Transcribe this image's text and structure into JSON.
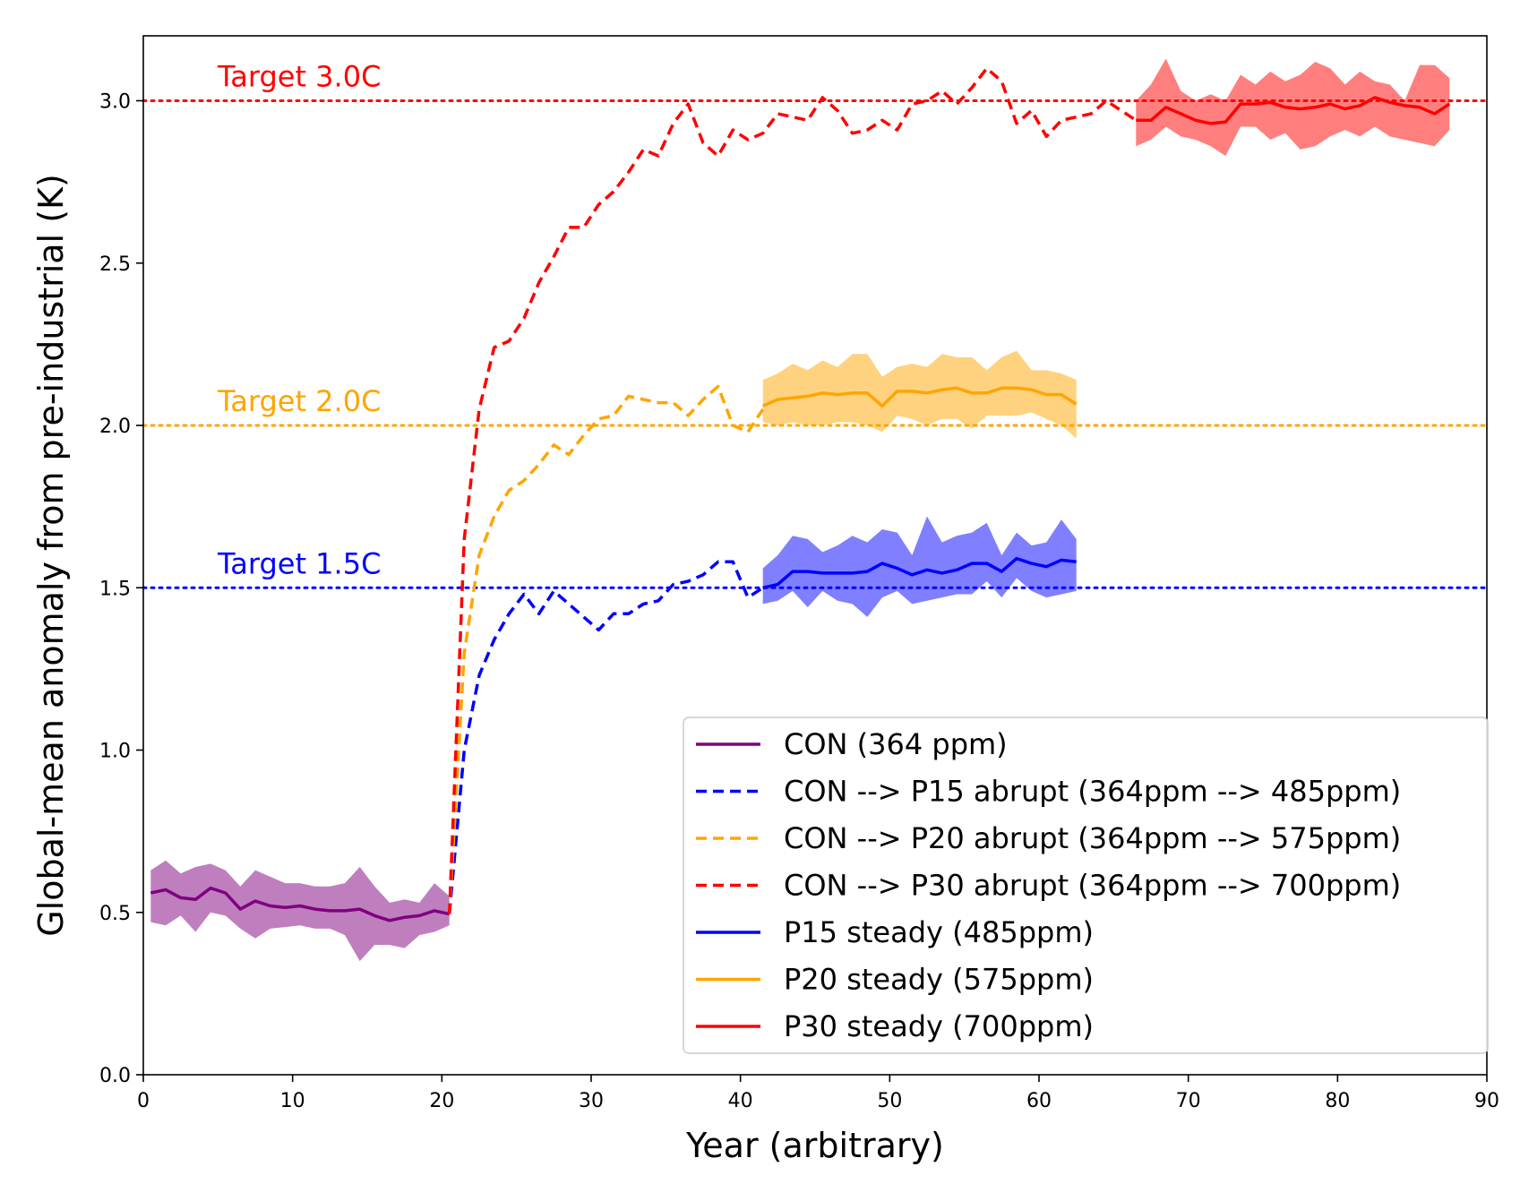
{
  "chart_data": {
    "type": "line",
    "xlabel": "Year (arbitrary)",
    "ylabel": "Global-mean anomaly from pre-industrial (K)",
    "xlim": [
      0,
      90
    ],
    "ylim": [
      0,
      3.2
    ],
    "xticks": [
      0,
      10,
      20,
      30,
      40,
      50,
      60,
      70,
      80,
      90
    ],
    "yticks": [
      0.0,
      0.5,
      1.0,
      1.5,
      2.0,
      2.5,
      3.0
    ],
    "xtick_labels": [
      "0",
      "10",
      "20",
      "30",
      "40",
      "50",
      "60",
      "70",
      "80",
      "90"
    ],
    "ytick_labels": [
      "0.0",
      "0.5",
      "1.0",
      "1.5",
      "2.0",
      "2.5",
      "3.0"
    ],
    "grid": false,
    "legend_position": "lower-right",
    "targets": [
      {
        "value": 1.5,
        "label": "Target 1.5C",
        "color": "#0000ff"
      },
      {
        "value": 2.0,
        "label": "Target 2.0C",
        "color": "#ffa500"
      },
      {
        "value": 3.0,
        "label": "Target 3.0C",
        "color": "#ff0000"
      }
    ],
    "series": [
      {
        "name": "CON (364 ppm)",
        "color": "#800080",
        "style": "solid",
        "x": [
          0.5,
          1.5,
          2.5,
          3.5,
          4.5,
          5.5,
          6.5,
          7.5,
          8.5,
          9.5,
          10.5,
          11.5,
          12.5,
          13.5,
          14.5,
          15.5,
          16.5,
          17.5,
          18.5,
          19.5,
          20.5
        ],
        "y": [
          0.56,
          0.57,
          0.545,
          0.54,
          0.575,
          0.56,
          0.51,
          0.535,
          0.52,
          0.515,
          0.52,
          0.51,
          0.505,
          0.505,
          0.51,
          0.49,
          0.475,
          0.485,
          0.49,
          0.505,
          0.495
        ],
        "band_upper": [
          0.63,
          0.66,
          0.62,
          0.64,
          0.65,
          0.63,
          0.58,
          0.63,
          0.61,
          0.59,
          0.59,
          0.58,
          0.58,
          0.59,
          0.64,
          0.58,
          0.53,
          0.54,
          0.53,
          0.59,
          0.55
        ],
        "band_lower": [
          0.47,
          0.46,
          0.49,
          0.44,
          0.5,
          0.49,
          0.45,
          0.42,
          0.45,
          0.455,
          0.46,
          0.45,
          0.45,
          0.43,
          0.35,
          0.4,
          0.4,
          0.39,
          0.43,
          0.44,
          0.46
        ]
      },
      {
        "name": "CON --> P15 abrupt (364ppm --> 485ppm)",
        "color": "#0000ff",
        "style": "dashed",
        "x": [
          20.5,
          21.5,
          22.5,
          23.5,
          24.5,
          25.5,
          26.5,
          27.5,
          28.5,
          29.5,
          30.5,
          31.5,
          32.5,
          33.5,
          34.5,
          35.5,
          36.5,
          37.5,
          38.5,
          39.5,
          40.5,
          41.5
        ],
        "y": [
          0.495,
          1.0,
          1.23,
          1.34,
          1.42,
          1.48,
          1.42,
          1.49,
          1.45,
          1.41,
          1.37,
          1.42,
          1.42,
          1.45,
          1.46,
          1.51,
          1.52,
          1.54,
          1.58,
          1.58,
          1.47,
          1.5
        ]
      },
      {
        "name": "CON --> P20 abrupt (364ppm --> 575ppm)",
        "color": "#ffa500",
        "style": "dashed",
        "x": [
          20.5,
          21.5,
          22.5,
          23.5,
          24.5,
          25.5,
          26.5,
          27.5,
          28.5,
          29.5,
          30.5,
          31.5,
          32.5,
          33.5,
          34.5,
          35.5,
          36.5,
          37.5,
          38.5,
          39.5,
          40.5,
          41.5
        ],
        "y": [
          0.495,
          1.3,
          1.6,
          1.72,
          1.8,
          1.83,
          1.88,
          1.94,
          1.91,
          1.97,
          2.02,
          2.03,
          2.09,
          2.08,
          2.07,
          2.07,
          2.03,
          2.08,
          2.12,
          2.0,
          1.98,
          2.05
        ]
      },
      {
        "name": "CON --> P30 abrupt (364ppm --> 700ppm)",
        "color": "#ff0000",
        "style": "dashed",
        "x": [
          20.5,
          21.5,
          22.5,
          23.5,
          24.5,
          25.5,
          26.5,
          27.5,
          28.5,
          29.5,
          30.5,
          31.5,
          32.5,
          33.5,
          34.5,
          35.5,
          36.5,
          37.5,
          38.5,
          39.5,
          40.5,
          41.5,
          42.5,
          43.5,
          44.5,
          45.5,
          46.5,
          47.5,
          48.5,
          49.5,
          50.5,
          51.5,
          52.5,
          53.5,
          54.5,
          55.5,
          56.5,
          57.5,
          58.5,
          59.5,
          60.5,
          61.5,
          62.5,
          63.5,
          64.5,
          65.5,
          66.5
        ],
        "y": [
          0.495,
          1.65,
          2.05,
          2.24,
          2.26,
          2.33,
          2.44,
          2.52,
          2.61,
          2.61,
          2.68,
          2.72,
          2.78,
          2.85,
          2.83,
          2.93,
          2.99,
          2.87,
          2.83,
          2.91,
          2.88,
          2.9,
          2.96,
          2.95,
          2.94,
          3.01,
          2.97,
          2.9,
          2.91,
          2.94,
          2.91,
          2.99,
          3.0,
          3.03,
          2.99,
          3.04,
          3.1,
          3.06,
          2.93,
          2.97,
          2.89,
          2.94,
          2.95,
          2.96,
          3.0,
          2.97,
          2.94
        ]
      },
      {
        "name": "P15 steady (485ppm)",
        "color": "#0000ff",
        "style": "solid",
        "x": [
          41.5,
          42.5,
          43.5,
          44.5,
          45.5,
          46.5,
          47.5,
          48.5,
          49.5,
          50.5,
          51.5,
          52.5,
          53.5,
          54.5,
          55.5,
          56.5,
          57.5,
          58.5,
          59.5,
          60.5,
          61.5,
          62.5
        ],
        "y": [
          1.5,
          1.51,
          1.55,
          1.55,
          1.545,
          1.545,
          1.545,
          1.55,
          1.575,
          1.56,
          1.54,
          1.555,
          1.545,
          1.555,
          1.575,
          1.575,
          1.55,
          1.59,
          1.575,
          1.565,
          1.585,
          1.58
        ],
        "band_upper": [
          1.56,
          1.6,
          1.66,
          1.65,
          1.61,
          1.63,
          1.66,
          1.64,
          1.68,
          1.67,
          1.6,
          1.72,
          1.64,
          1.66,
          1.67,
          1.7,
          1.6,
          1.67,
          1.63,
          1.64,
          1.71,
          1.65
        ],
        "band_lower": [
          1.45,
          1.46,
          1.49,
          1.44,
          1.49,
          1.46,
          1.45,
          1.41,
          1.47,
          1.49,
          1.45,
          1.46,
          1.47,
          1.48,
          1.48,
          1.52,
          1.47,
          1.53,
          1.49,
          1.47,
          1.48,
          1.49
        ]
      },
      {
        "name": "P20 steady (575ppm)",
        "color": "#ffa500",
        "style": "solid",
        "x": [
          41.5,
          42.5,
          43.5,
          44.5,
          45.5,
          46.5,
          47.5,
          48.5,
          49.5,
          50.5,
          51.5,
          52.5,
          53.5,
          54.5,
          55.5,
          56.5,
          57.5,
          58.5,
          59.5,
          60.5,
          61.5,
          62.5
        ],
        "y": [
          2.06,
          2.08,
          2.085,
          2.09,
          2.1,
          2.095,
          2.1,
          2.1,
          2.06,
          2.105,
          2.105,
          2.1,
          2.11,
          2.115,
          2.1,
          2.1,
          2.115,
          2.115,
          2.11,
          2.095,
          2.095,
          2.065
        ],
        "band_upper": [
          2.14,
          2.16,
          2.19,
          2.17,
          2.2,
          2.18,
          2.22,
          2.22,
          2.15,
          2.18,
          2.19,
          2.18,
          2.22,
          2.21,
          2.21,
          2.17,
          2.21,
          2.23,
          2.17,
          2.17,
          2.16,
          2.14
        ],
        "band_lower": [
          2.01,
          2.0,
          2.01,
          2.0,
          2.0,
          2.01,
          2.01,
          2.0,
          1.98,
          2.03,
          2.02,
          2.0,
          2.02,
          2.02,
          1.99,
          2.03,
          2.03,
          2.03,
          2.04,
          2.02,
          2.0,
          1.96
        ]
      },
      {
        "name": "P30 steady (700ppm)",
        "color": "#ff0000",
        "style": "solid",
        "x": [
          66.5,
          67.5,
          68.5,
          69.5,
          70.5,
          71.5,
          72.5,
          73.5,
          74.5,
          75.5,
          76.5,
          77.5,
          78.5,
          79.5,
          80.5,
          81.5,
          82.5,
          83.5,
          84.5,
          85.5,
          86.5,
          87.5
        ],
        "y": [
          2.94,
          2.94,
          2.98,
          2.96,
          2.94,
          2.93,
          2.935,
          2.99,
          2.99,
          2.995,
          2.98,
          2.975,
          2.98,
          2.99,
          2.975,
          2.985,
          3.01,
          2.995,
          2.985,
          2.98,
          2.96,
          2.99
        ],
        "band_upper": [
          3.0,
          3.05,
          3.13,
          3.03,
          3.0,
          3.02,
          3.0,
          3.08,
          3.05,
          3.09,
          3.06,
          3.08,
          3.12,
          3.1,
          3.05,
          3.09,
          3.06,
          3.05,
          3.0,
          3.11,
          3.11,
          3.07
        ],
        "band_lower": [
          2.86,
          2.88,
          2.92,
          2.89,
          2.88,
          2.86,
          2.83,
          2.92,
          2.92,
          2.88,
          2.9,
          2.85,
          2.86,
          2.89,
          2.91,
          2.89,
          2.92,
          2.89,
          2.88,
          2.87,
          2.86,
          2.91
        ]
      }
    ]
  }
}
